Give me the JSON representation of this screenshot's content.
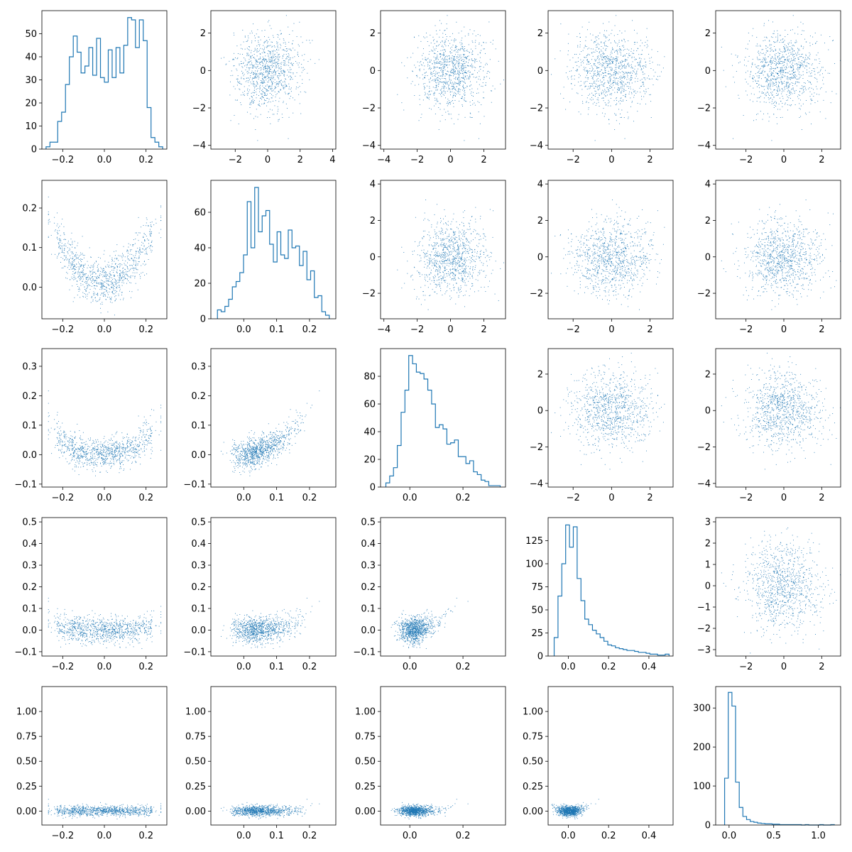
{
  "chart_data": {
    "type": "pairplot",
    "title": "",
    "n_rows": 5,
    "n_cols": 5,
    "point_color": "#1f77b4",
    "points_per_panel": 1000,
    "diagonal": "step histogram",
    "variables": [
      {
        "name": "",
        "hist_range": [
          -0.28,
          0.28
        ],
        "hist_bins": 30,
        "hist_max": 57,
        "as_x_axis": {
          "lim": [
            -0.3,
            0.3
          ],
          "ticks": [
            -0.2,
            0.0,
            0.2
          ],
          "tick_labels": [
            "−0.2",
            "0.0",
            "0.2"
          ]
        }
      },
      {
        "name": "",
        "hist_range": [
          -0.08,
          0.26
        ],
        "hist_bins": 30,
        "hist_max": 74,
        "as_x_axis": {
          "lim": [
            -0.1,
            0.28
          ],
          "ticks": [
            0.0,
            0.1,
            0.2
          ],
          "tick_labels": [
            "0.0",
            "0.1",
            "0.2"
          ]
        }
      },
      {
        "name": "",
        "hist_range": [
          -0.09,
          0.34
        ],
        "hist_bins": 30,
        "hist_max": 95,
        "as_x_axis": {
          "lim": [
            -0.11,
            0.36
          ],
          "ticks": [
            0.0,
            0.2
          ],
          "tick_labels": [
            "0.0",
            "0.2"
          ]
        }
      },
      {
        "name": "",
        "hist_range": [
          -0.07,
          0.5
        ],
        "hist_bins": 30,
        "hist_max": 142,
        "as_x_axis": {
          "lim": [
            -0.1,
            0.52
          ],
          "ticks": [
            0.0,
            0.2,
            0.4
          ],
          "tick_labels": [
            "0.0",
            "0.2",
            "0.4"
          ]
        }
      },
      {
        "name": "",
        "hist_range": [
          -0.05,
          1.18
        ],
        "hist_bins": 30,
        "hist_max": 340,
        "as_x_axis": {
          "lim": [
            -0.15,
            1.25
          ],
          "ticks": [
            0.0,
            0.5,
            1.0
          ],
          "tick_labels": [
            "0.0",
            "0.5",
            "1.0"
          ]
        }
      }
    ],
    "diagonal_histograms": [
      {
        "row": 0,
        "counts": [
          1,
          3,
          3,
          12,
          16,
          28,
          40,
          49,
          42,
          33,
          36,
          44,
          32,
          48,
          31,
          29,
          43,
          31,
          44,
          33,
          45,
          57,
          56,
          44,
          56,
          47,
          18,
          5,
          3,
          1
        ],
        "ylim": [
          0,
          60
        ],
        "yticks": [
          0,
          10,
          20,
          30,
          40,
          50
        ],
        "ytick_labels": [
          "0",
          "10",
          "20",
          "30",
          "40",
          "50"
        ]
      },
      {
        "row": 1,
        "counts": [
          5,
          4,
          7,
          11,
          18,
          21,
          26,
          36,
          66,
          40,
          74,
          49,
          58,
          61,
          42,
          32,
          49,
          36,
          34,
          50,
          40,
          41,
          30,
          38,
          22,
          27,
          12,
          13,
          4,
          2
        ],
        "ylim": [
          0,
          78
        ],
        "yticks": [
          0,
          20,
          40,
          60
        ],
        "ytick_labels": [
          "0",
          "20",
          "40",
          "60"
        ]
      },
      {
        "row": 2,
        "counts": [
          3,
          8,
          14,
          30,
          54,
          70,
          95,
          89,
          83,
          82,
          78,
          70,
          60,
          43,
          45,
          42,
          31,
          32,
          34,
          22,
          22,
          17,
          19,
          11,
          9,
          5,
          4,
          1,
          1,
          1
        ],
        "ylim": [
          0,
          100
        ],
        "yticks": [
          0,
          20,
          40,
          60,
          80
        ],
        "ytick_labels": [
          "0",
          "20",
          "40",
          "60",
          "80"
        ]
      },
      {
        "row": 3,
        "counts": [
          20,
          65,
          100,
          142,
          118,
          140,
          84,
          60,
          40,
          34,
          28,
          24,
          20,
          16,
          12,
          11,
          9,
          8,
          7,
          6,
          6,
          5,
          4,
          4,
          3,
          2,
          2,
          1,
          1,
          2
        ],
        "ylim": [
          0,
          150
        ],
        "yticks": [
          0,
          25,
          50,
          75,
          100,
          125
        ],
        "ytick_labels": [
          "0",
          "25",
          "50",
          "75",
          "100",
          "125"
        ]
      },
      {
        "row": 4,
        "counts": [
          120,
          340,
          305,
          110,
          45,
          22,
          14,
          9,
          7,
          5,
          4,
          3,
          3,
          2,
          2,
          1,
          1,
          1,
          1,
          1,
          1,
          0,
          1,
          0,
          0,
          0,
          1,
          0,
          0,
          1
        ],
        "ylim": [
          0,
          355
        ],
        "yticks": [
          0,
          100,
          200,
          300
        ],
        "ytick_labels": [
          "0",
          "100",
          "200",
          "300"
        ]
      }
    ],
    "upper_triangle_scatter": [
      {
        "row": 0,
        "col": 1,
        "xlim": [
          -3.5,
          4.2
        ],
        "xticks": [
          -2,
          0,
          2,
          4
        ],
        "ylim": [
          -4.2,
          3.2
        ],
        "yticks": [
          -4,
          -2,
          0,
          2
        ]
      },
      {
        "row": 0,
        "col": 2,
        "xlim": [
          -4.2,
          3.3
        ],
        "xticks": [
          -4,
          -2,
          0,
          2
        ],
        "ylim": [
          -4.2,
          3.2
        ],
        "yticks": [
          -4,
          -2,
          0,
          2
        ]
      },
      {
        "row": 0,
        "col": 3,
        "xlim": [
          -3.3,
          3.2
        ],
        "xticks": [
          -2,
          0,
          2
        ],
        "ylim": [
          -4.2,
          3.2
        ],
        "yticks": [
          -4,
          -2,
          0,
          2
        ]
      },
      {
        "row": 0,
        "col": 4,
        "xlim": [
          -3.6,
          3.0
        ],
        "xticks": [
          -2,
          0,
          2
        ],
        "ylim": [
          -4.2,
          3.2
        ],
        "yticks": [
          -4,
          -2,
          0,
          2
        ]
      },
      {
        "row": 1,
        "col": 2,
        "xlim": [
          -4.2,
          3.3
        ],
        "xticks": [
          -4,
          -2,
          0,
          2
        ],
        "ylim": [
          -3.4,
          4.2
        ],
        "yticks": [
          -2,
          0,
          2,
          4
        ]
      },
      {
        "row": 1,
        "col": 3,
        "xlim": [
          -3.3,
          3.2
        ],
        "xticks": [
          -2,
          0,
          2
        ],
        "ylim": [
          -3.4,
          4.2
        ],
        "yticks": [
          -2,
          0,
          2,
          4
        ]
      },
      {
        "row": 1,
        "col": 4,
        "xlim": [
          -3.6,
          3.0
        ],
        "xticks": [
          -2,
          0,
          2
        ],
        "ylim": [
          -3.4,
          4.2
        ],
        "yticks": [
          -2,
          0,
          2,
          4
        ]
      },
      {
        "row": 2,
        "col": 3,
        "xlim": [
          -3.3,
          3.2
        ],
        "xticks": [
          -2,
          0,
          2
        ],
        "ylim": [
          -4.2,
          3.4
        ],
        "yticks": [
          -4,
          -2,
          0,
          2
        ]
      },
      {
        "row": 2,
        "col": 4,
        "xlim": [
          -3.6,
          3.0
        ],
        "xticks": [
          -2,
          0,
          2
        ],
        "ylim": [
          -4.2,
          3.4
        ],
        "yticks": [
          -4,
          -2,
          0,
          2
        ]
      },
      {
        "row": 3,
        "col": 4,
        "xlim": [
          -3.6,
          3.0
        ],
        "xticks": [
          -2,
          0,
          2
        ],
        "ylim": [
          -3.3,
          3.2
        ],
        "yticks": [
          -3,
          -2,
          -1,
          0,
          1,
          2,
          3
        ]
      }
    ],
    "lower_triangle_ylims": [
      {
        "row": 1,
        "ylim": [
          -0.08,
          0.27
        ],
        "yticks": [
          0.0,
          0.1,
          0.2
        ],
        "ytick_labels": [
          "0.0",
          "0.1",
          "0.2"
        ]
      },
      {
        "row": 2,
        "ylim": [
          -0.11,
          0.36
        ],
        "yticks": [
          -0.1,
          0.0,
          0.1,
          0.2,
          0.3
        ],
        "ytick_labels": [
          "−0.1",
          "0.0",
          "0.1",
          "0.2",
          "0.3"
        ]
      },
      {
        "row": 3,
        "ylim": [
          -0.12,
          0.52
        ],
        "yticks": [
          -0.1,
          0.0,
          0.1,
          0.2,
          0.3,
          0.4,
          0.5
        ],
        "ytick_labels": [
          "−0.1",
          "0.0",
          "0.1",
          "0.2",
          "0.3",
          "0.4",
          "0.5"
        ]
      },
      {
        "row": 4,
        "ylim": [
          -0.14,
          1.25
        ],
        "yticks": [
          0.0,
          0.25,
          0.5,
          0.75,
          1.0
        ],
        "ytick_labels": [
          "0.00",
          "0.25",
          "0.50",
          "0.75",
          "1.00"
        ]
      }
    ]
  }
}
